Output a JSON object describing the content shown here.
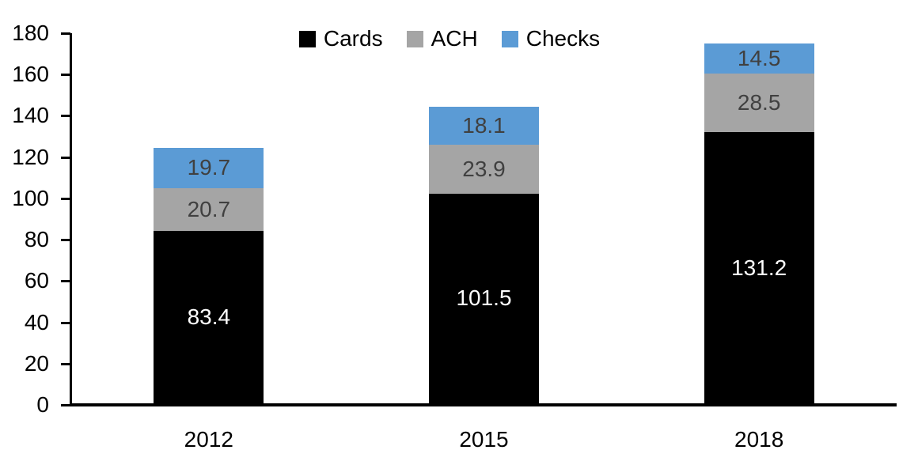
{
  "chart_data": {
    "type": "bar",
    "stacked": true,
    "title": "",
    "xlabel": "",
    "ylabel": "",
    "categories": [
      "2012",
      "2015",
      "2018"
    ],
    "series": [
      {
        "name": "Cards",
        "color": "#000000",
        "label_color": "#FFFFFF",
        "values": [
          83.4,
          101.5,
          131.2
        ]
      },
      {
        "name": "ACH",
        "color": "#A5A5A5",
        "label_color": "#404040",
        "values": [
          20.7,
          23.9,
          28.5
        ]
      },
      {
        "name": "Checks",
        "color": "#5B9BD5",
        "label_color": "#404040",
        "values": [
          19.7,
          18.1,
          14.5
        ]
      }
    ],
    "totals": [
      123.8,
      143.5,
      174.2
    ],
    "value_labels": true,
    "value_label_decimals": 1,
    "ylim": [
      0,
      180
    ],
    "ytick_step": 20,
    "yticks": [
      0,
      20,
      40,
      60,
      80,
      100,
      120,
      140,
      160,
      180
    ],
    "grid": false,
    "legend": {
      "position": "top",
      "entries": [
        "Cards",
        "ACH",
        "Checks"
      ]
    },
    "axis_color": "#000000"
  }
}
